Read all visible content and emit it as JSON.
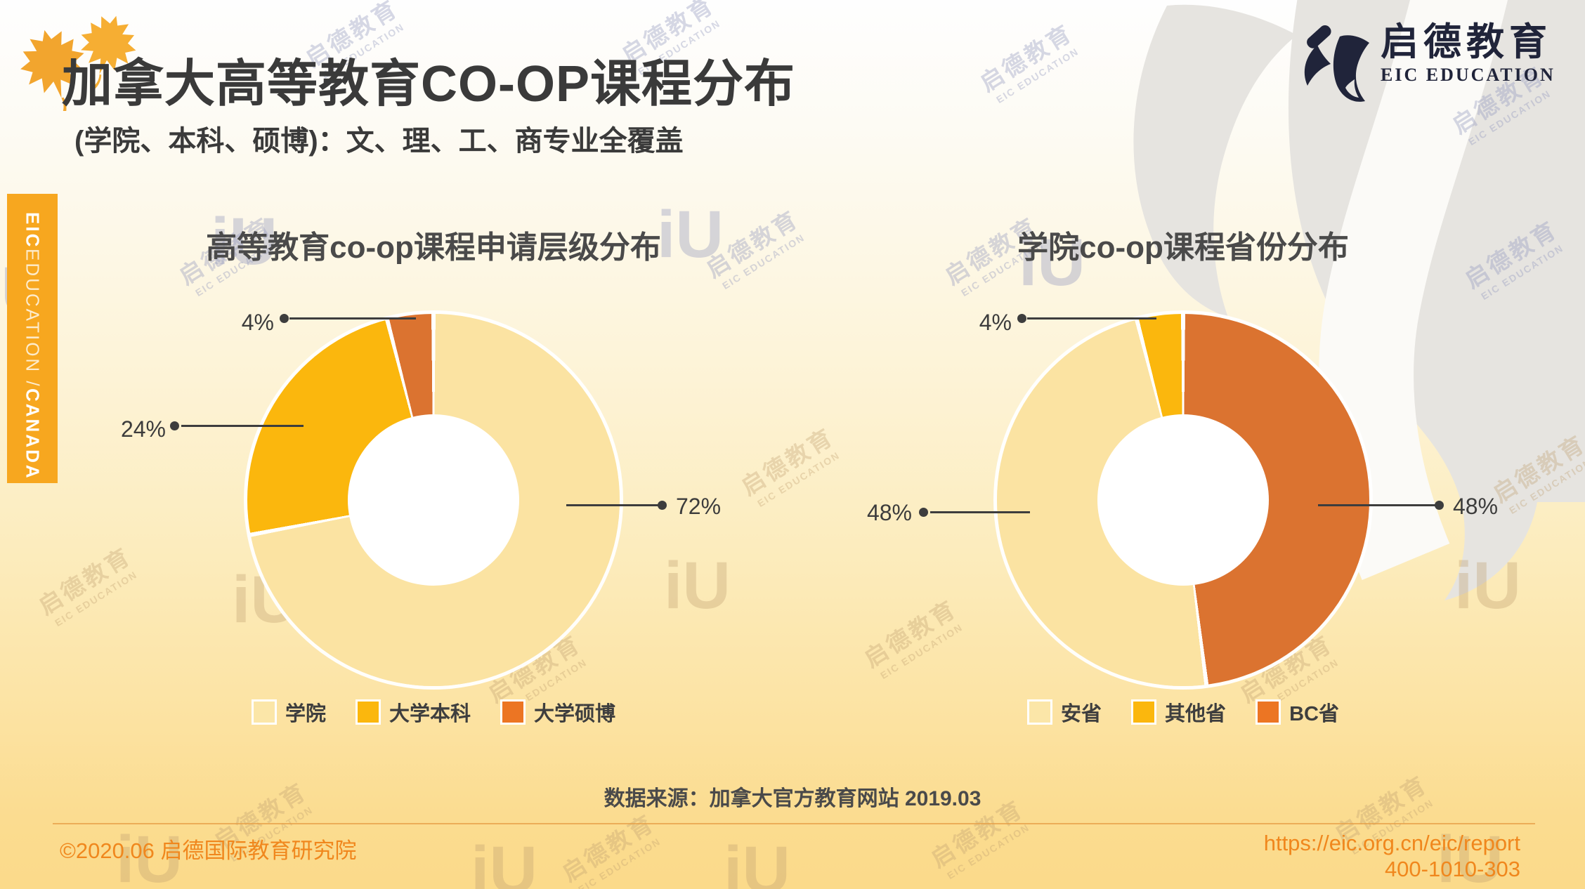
{
  "page": {
    "title": "加拿大高等教育CO-OP课程分布",
    "subtitle": "(学院、本科、硕博)：文、理、工、商专业全覆盖"
  },
  "logo": {
    "cn": "启德教育",
    "en": "EIC EDUCATION"
  },
  "sidebar": {
    "brand": "EIC",
    "rest": " EDUCATION / ",
    "region": "CANADA"
  },
  "charts": [
    {
      "title": "高等教育co-op课程申请层级分布",
      "callouts": [
        "4%",
        "24%",
        "72%"
      ],
      "legend": [
        {
          "label": "学院",
          "color": "#fbe6a8"
        },
        {
          "label": "大学本科",
          "color": "#fbb70d"
        },
        {
          "label": "大学硕博",
          "color": "#ec7523"
        }
      ],
      "segments_clockwise": [
        {
          "label": "学院",
          "pct": 72,
          "color": "#fbe3a2"
        },
        {
          "label": "大学本科",
          "pct": 24,
          "color": "#fbb70d"
        },
        {
          "label": "大学硕博",
          "pct": 4,
          "color": "#db7330"
        }
      ]
    },
    {
      "title": "学院co-op课程省份分布",
      "callouts": [
        "4%",
        "48%",
        "48%"
      ],
      "legend": [
        {
          "label": "安省",
          "color": "#fbe6a8"
        },
        {
          "label": "其他省",
          "color": "#fbb70d"
        },
        {
          "label": "BC省",
          "color": "#ec7523"
        }
      ],
      "segments_clockwise": [
        {
          "label": "BC省",
          "pct": 48,
          "color": "#db7330"
        },
        {
          "label": "安省",
          "pct": 48,
          "color": "#fbe3a2"
        },
        {
          "label": "其他省",
          "pct": 4,
          "color": "#fbb70d"
        }
      ]
    }
  ],
  "source_note": "数据来源：加拿大官方教育网站 2019.03",
  "footer": {
    "copyright": "©2020.06 启德国际教育研究院",
    "url": "https://eic.org.cn/eic/report",
    "phone": "400-1010-303"
  },
  "watermark": {
    "line1": "启德教育",
    "line2": "EIC EDUCATION",
    "glyph": "iU"
  },
  "chart_data": [
    {
      "type": "pie",
      "subtype": "donut",
      "title": "高等教育co-op课程申请层级分布",
      "labels": [
        "学院",
        "大学本科",
        "大学硕博"
      ],
      "values": [
        72,
        24,
        4
      ],
      "unit": "%",
      "colors": [
        "#fbe3a2",
        "#fbb70d",
        "#db7330"
      ],
      "data_labels": [
        "72%",
        "24%",
        "4%"
      ],
      "start_angle_deg": 0,
      "direction": "clockwise",
      "hole_ratio": 0.46,
      "legend_position": "bottom"
    },
    {
      "type": "pie",
      "subtype": "donut",
      "title": "学院co-op课程省份分布",
      "labels": [
        "BC省",
        "安省",
        "其他省"
      ],
      "values": [
        48,
        48,
        4
      ],
      "unit": "%",
      "colors": [
        "#db7330",
        "#fbe3a2",
        "#fbb70d"
      ],
      "data_labels": [
        "48%",
        "48%",
        "4%"
      ],
      "start_angle_deg": 0,
      "direction": "clockwise",
      "hole_ratio": 0.46,
      "legend_position": "bottom",
      "legend_order": [
        "安省",
        "其他省",
        "BC省"
      ]
    }
  ]
}
